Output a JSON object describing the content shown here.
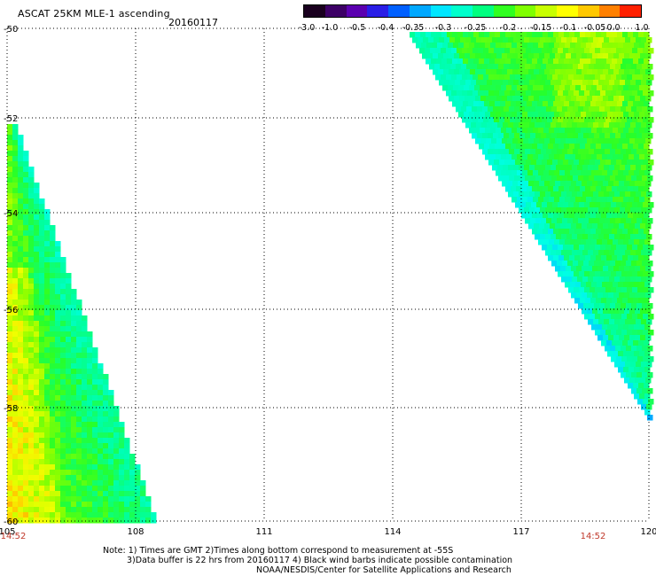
{
  "header": {
    "title": "ASCAT 25KM MLE-1 ascending",
    "date": "20160117"
  },
  "colorbar": {
    "labels": [
      "-3.0",
      "-1.0",
      "-0.5",
      "-0.4",
      "-0.35",
      "-0.3",
      "-0.25",
      "-0.2",
      "-0.15",
      "-0.1",
      "-0.05",
      "0.0",
      "1.0"
    ],
    "colors": [
      "#1a001f",
      "#3d0066",
      "#5b00b0",
      "#2a1ee6",
      "#0060ff",
      "#00a8ff",
      "#00e6ff",
      "#00ffcc",
      "#00ff80",
      "#30ff20",
      "#80ff00",
      "#c8ff00",
      "#ffff00",
      "#ffc800",
      "#ff8000",
      "#ff2000"
    ]
  },
  "map": {
    "lat_labels": [
      "-50",
      "-52",
      "-54",
      "-56",
      "-58",
      "-60"
    ],
    "lon_labels": [
      "105",
      "108",
      "111",
      "114",
      "117",
      "120"
    ],
    "time_labels": [
      "14:52",
      "14:52"
    ]
  },
  "notes": {
    "line1": "Note: 1) Times are GMT 2)Times along bottom correspond to measurement at -55S",
    "line2": "3)Data buffer is 22 hrs from 20160117 4) Black wind barbs indicate possible contamination",
    "line3": "NOAA/NESDIS/Center for Satellite Applications and Research"
  }
}
